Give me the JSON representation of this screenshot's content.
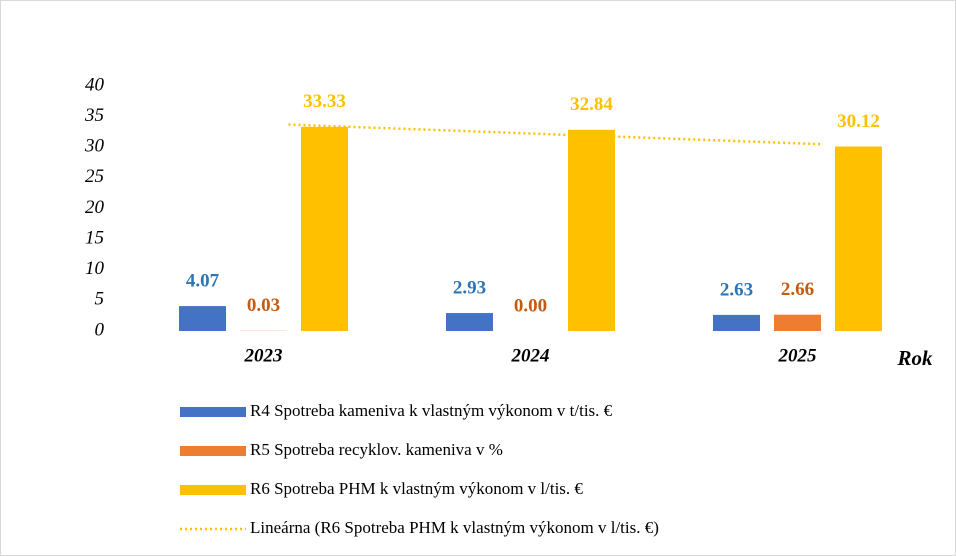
{
  "chart_data": {
    "type": "bar",
    "categories": [
      "2023",
      "2024",
      "2025"
    ],
    "x_axis_label": "Rok",
    "series": [
      {
        "name": "R4 Spotreba kameniva k vlastným výkonom v t/tis. €",
        "color": "#4472c4",
        "label_color": "#2e75b6",
        "values": [
          4.07,
          2.93,
          2.63
        ]
      },
      {
        "name": "R5 Spotreba recyklov. kameniva v %",
        "color": "#ed7d31",
        "label_color": "#c55a11",
        "values": [
          0.03,
          0.0,
          2.66
        ],
        "value_labels": [
          "0.03",
          "0.00",
          "2.66"
        ]
      },
      {
        "name": "R6 Spotreba PHM k vlastným výkonom v l/tis. €",
        "color": "#ffc000",
        "label_color": "#ffc000",
        "values": [
          33.33,
          32.84,
          30.12
        ]
      }
    ],
    "trendline": {
      "name": "Lineárna (R6 Spotreba PHM k vlastným výkonom v l/tis. €)",
      "type": "linear",
      "series": 2,
      "color": "#ffc000"
    },
    "ylim": [
      0,
      40
    ],
    "yticks": [
      0,
      5,
      10,
      15,
      20,
      25,
      30,
      35,
      40
    ],
    "grid": false
  }
}
